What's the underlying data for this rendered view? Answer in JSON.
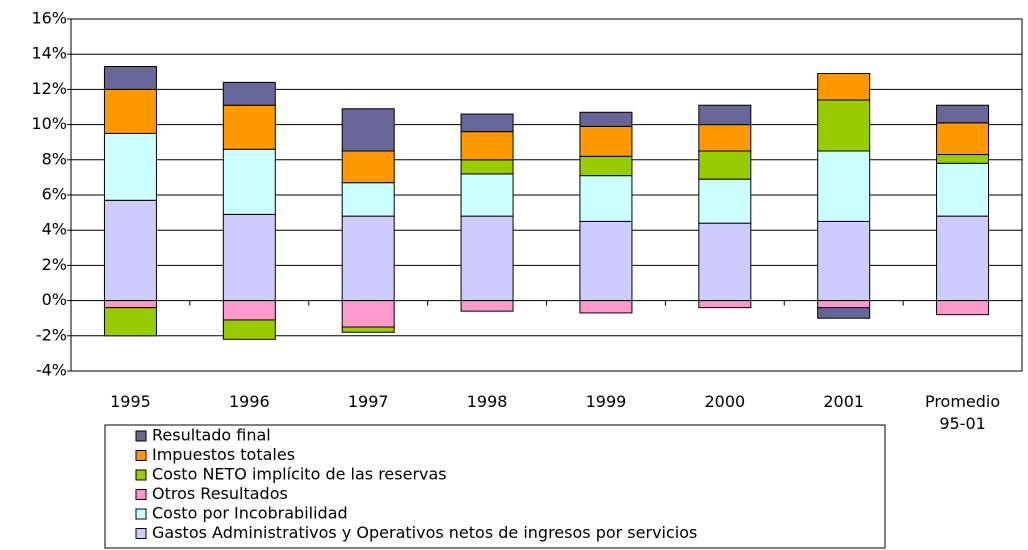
{
  "chart_data": {
    "type": "stacked-bar",
    "categories": [
      "1995",
      "1996",
      "1997",
      "1998",
      "1999",
      "2000",
      "2001",
      "Promedio 95-01"
    ],
    "series": [
      {
        "name": "Gastos  Administrativos y Operativos netos de ingresos por servicios",
        "color": "#ccccff",
        "values": [
          5.7,
          4.9,
          4.8,
          4.8,
          4.5,
          4.4,
          4.5,
          4.8
        ]
      },
      {
        "name": "Costo por Incobrabilidad",
        "color": "#ccffff",
        "values": [
          3.8,
          3.7,
          1.9,
          2.4,
          2.6,
          2.5,
          4.0,
          3.0
        ]
      },
      {
        "name": "Otros Resultados",
        "color": "#ff99cc",
        "values": [
          -0.4,
          -1.1,
          -1.5,
          -0.6,
          -0.7,
          -0.4,
          -0.4,
          -0.8
        ]
      },
      {
        "name": "Costo NETO implícito de las reservas",
        "color": "#99cc00",
        "values": [
          -1.6,
          -1.1,
          -0.3,
          0.8,
          1.1,
          1.6,
          2.9,
          0.5
        ]
      },
      {
        "name": "Impuestos totales",
        "color": "#ff9900",
        "values": [
          2.5,
          2.5,
          1.8,
          1.6,
          1.7,
          1.5,
          1.5,
          1.8
        ]
      },
      {
        "name": "Resultado final",
        "color": "#666699",
        "values": [
          1.3,
          1.3,
          2.4,
          1.0,
          0.8,
          1.1,
          -0.6,
          1.0
        ]
      }
    ],
    "ylim": [
      -4,
      16
    ],
    "yticks": [
      {
        "value": -4,
        "label": "-4%"
      },
      {
        "value": -2,
        "label": "-2%"
      },
      {
        "value": 0,
        "label": "0%"
      },
      {
        "value": 2,
        "label": "2%"
      },
      {
        "value": 4,
        "label": "4%"
      },
      {
        "value": 6,
        "label": "6%"
      },
      {
        "value": 8,
        "label": "8%"
      },
      {
        "value": 10,
        "label": "10%"
      },
      {
        "value": 12,
        "label": "12%"
      },
      {
        "value": 14,
        "label": "14%"
      },
      {
        "value": 16,
        "label": "16%"
      }
    ],
    "grid": true
  }
}
